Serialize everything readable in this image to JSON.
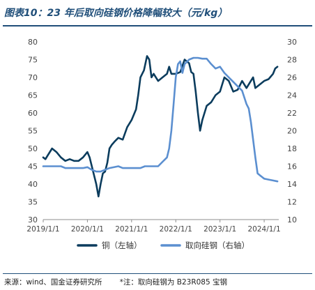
{
  "title": "图表10：23 年后取向硅钢价格降幅较大（元/kg）",
  "source_text": "来源：wind、国金证券研究所",
  "note_text": "*注：取向硅钢为 B23R085 宝钢",
  "colors": {
    "copper": "#0b3c5d",
    "silicon": "#5b8fd0",
    "title": "#1f4e79"
  },
  "chart_data": {
    "type": "line",
    "title": "图表10：23 年后取向硅钢价格降幅较大（元/kg）",
    "x_tick_labels": [
      "2019/1/1",
      "2020/1/1",
      "2021/1/1",
      "2022/1/1",
      "2023/1/1",
      "2024/1/1"
    ],
    "x_ticks": [
      2019.0,
      2020.0,
      2021.0,
      2022.0,
      2023.0,
      2024.0
    ],
    "xlim": [
      2019.0,
      2024.33
    ],
    "ylim_left": [
      30,
      80
    ],
    "ylim_right": [
      10,
      30
    ],
    "y_left_ticks": [
      30,
      35,
      40,
      45,
      50,
      55,
      60,
      65,
      70,
      75,
      80
    ],
    "y_right_ticks": [
      10,
      12,
      14,
      16,
      18,
      20,
      22,
      24,
      26,
      28,
      30
    ],
    "grid": false,
    "legend_position": "bottom",
    "series": [
      {
        "name": "铜（左轴）",
        "axis": "left",
        "points": [
          [
            2019.0,
            47.5
          ],
          [
            2019.05,
            47.0
          ],
          [
            2019.1,
            48.0
          ],
          [
            2019.2,
            50.0
          ],
          [
            2019.3,
            49.0
          ],
          [
            2019.4,
            47.5
          ],
          [
            2019.5,
            46.5
          ],
          [
            2019.6,
            47.0
          ],
          [
            2019.7,
            46.5
          ],
          [
            2019.8,
            46.5
          ],
          [
            2019.9,
            47.5
          ],
          [
            2020.0,
            49.0
          ],
          [
            2020.05,
            47.5
          ],
          [
            2020.12,
            44.0
          ],
          [
            2020.2,
            40.0
          ],
          [
            2020.25,
            36.5
          ],
          [
            2020.3,
            40.0
          ],
          [
            2020.35,
            43.0
          ],
          [
            2020.4,
            43.5
          ],
          [
            2020.45,
            46.0
          ],
          [
            2020.5,
            50.0
          ],
          [
            2020.55,
            51.0
          ],
          [
            2020.62,
            52.0
          ],
          [
            2020.7,
            53.0
          ],
          [
            2020.8,
            52.5
          ],
          [
            2020.9,
            56.0
          ],
          [
            2021.0,
            58.0
          ],
          [
            2021.1,
            61.0
          ],
          [
            2021.15,
            65.0
          ],
          [
            2021.2,
            70.0
          ],
          [
            2021.28,
            72.0
          ],
          [
            2021.35,
            76.0
          ],
          [
            2021.4,
            75.0
          ],
          [
            2021.45,
            70.0
          ],
          [
            2021.5,
            71.0
          ],
          [
            2021.6,
            69.0
          ],
          [
            2021.7,
            70.0
          ],
          [
            2021.8,
            71.0
          ],
          [
            2021.85,
            73.0
          ],
          [
            2021.9,
            71.0
          ],
          [
            2022.0,
            71.0
          ],
          [
            2022.1,
            71.5
          ],
          [
            2022.2,
            75.0
          ],
          [
            2022.3,
            74.0
          ],
          [
            2022.35,
            71.5
          ],
          [
            2022.4,
            71.0
          ],
          [
            2022.45,
            66.0
          ],
          [
            2022.5,
            60.0
          ],
          [
            2022.55,
            55.0
          ],
          [
            2022.6,
            58.0
          ],
          [
            2022.7,
            62.0
          ],
          [
            2022.8,
            63.0
          ],
          [
            2022.9,
            65.0
          ],
          [
            2023.0,
            66.0
          ],
          [
            2023.05,
            68.0
          ],
          [
            2023.1,
            70.0
          ],
          [
            2023.2,
            69.0
          ],
          [
            2023.3,
            66.0
          ],
          [
            2023.4,
            66.5
          ],
          [
            2023.5,
            69.0
          ],
          [
            2023.6,
            67.0
          ],
          [
            2023.7,
            69.0
          ],
          [
            2023.75,
            70.0
          ],
          [
            2023.8,
            67.0
          ],
          [
            2023.9,
            68.0
          ],
          [
            2024.0,
            69.0
          ],
          [
            2024.1,
            69.5
          ],
          [
            2024.2,
            71.0
          ],
          [
            2024.25,
            72.5
          ],
          [
            2024.3,
            73.0
          ]
        ]
      },
      {
        "name": "取向硅钢（右轴）",
        "axis": "right",
        "points": [
          [
            2019.0,
            16.0
          ],
          [
            2019.4,
            16.0
          ],
          [
            2019.5,
            15.8
          ],
          [
            2019.9,
            15.8
          ],
          [
            2020.0,
            15.9
          ],
          [
            2020.1,
            15.6
          ],
          [
            2020.2,
            15.4
          ],
          [
            2020.3,
            15.4
          ],
          [
            2020.4,
            15.6
          ],
          [
            2020.5,
            15.8
          ],
          [
            2020.7,
            16.0
          ],
          [
            2020.8,
            15.8
          ],
          [
            2021.2,
            15.8
          ],
          [
            2021.3,
            16.0
          ],
          [
            2021.6,
            16.0
          ],
          [
            2021.7,
            16.5
          ],
          [
            2021.8,
            17.0
          ],
          [
            2021.85,
            18.0
          ],
          [
            2021.9,
            20.0
          ],
          [
            2021.95,
            23.0
          ],
          [
            2022.0,
            26.0
          ],
          [
            2022.05,
            27.5
          ],
          [
            2022.1,
            27.8
          ],
          [
            2022.15,
            26.5
          ],
          [
            2022.2,
            27.5
          ],
          [
            2022.3,
            28.0
          ],
          [
            2022.4,
            28.2
          ],
          [
            2022.5,
            28.2
          ],
          [
            2022.6,
            28.1
          ],
          [
            2022.7,
            28.1
          ],
          [
            2022.8,
            27.5
          ],
          [
            2022.9,
            27.0
          ],
          [
            2023.0,
            27.2
          ],
          [
            2023.1,
            26.5
          ],
          [
            2023.2,
            26.0
          ],
          [
            2023.3,
            25.5
          ],
          [
            2023.4,
            25.0
          ],
          [
            2023.5,
            24.5
          ],
          [
            2023.6,
            23.0
          ],
          [
            2023.65,
            22.5
          ],
          [
            2023.7,
            21.0
          ],
          [
            2023.75,
            19.0
          ],
          [
            2023.8,
            17.0
          ],
          [
            2023.85,
            15.2
          ],
          [
            2023.9,
            15.0
          ],
          [
            2024.0,
            14.6
          ],
          [
            2024.1,
            14.5
          ],
          [
            2024.2,
            14.4
          ],
          [
            2024.3,
            14.3
          ]
        ]
      }
    ]
  }
}
